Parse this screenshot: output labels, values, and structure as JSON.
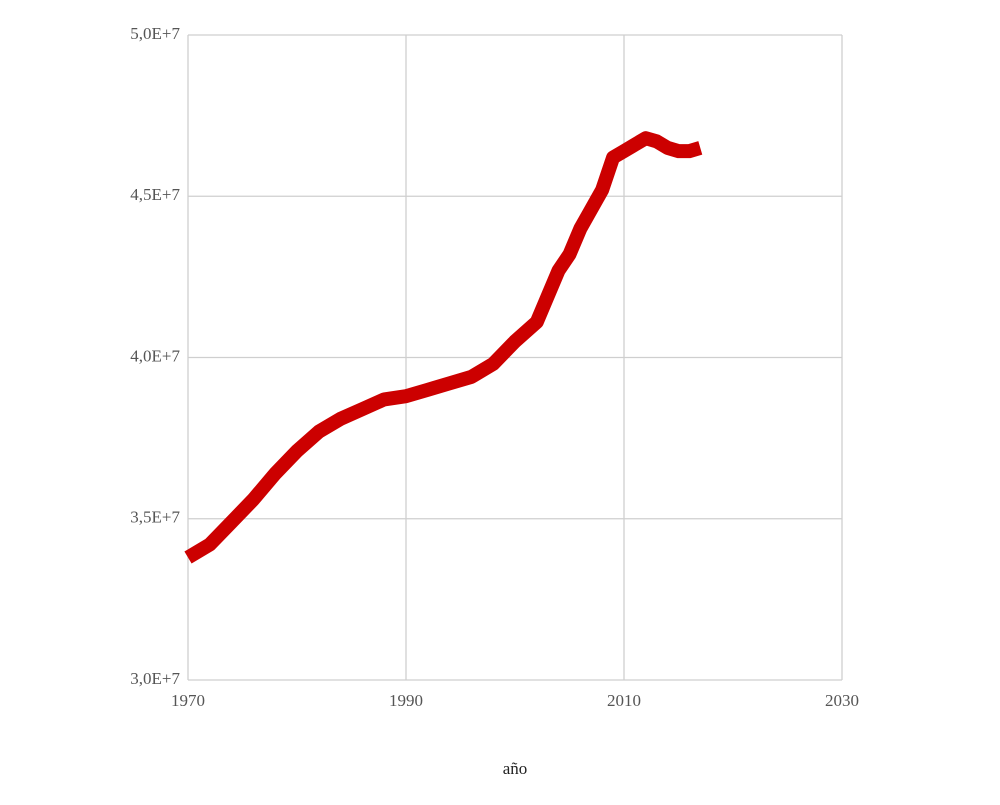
{
  "chart_data": {
    "type": "line",
    "x_label": "año",
    "x": [
      1970,
      1972,
      1974,
      1976,
      1978,
      1980,
      1982,
      1984,
      1986,
      1988,
      1990,
      1992,
      1994,
      1996,
      1998,
      2000,
      2002,
      2004,
      2005,
      2006,
      2007,
      2008,
      2009,
      2010,
      2011,
      2012,
      2013,
      2014,
      2015,
      2016,
      2017
    ],
    "values": [
      33800000,
      34200000,
      34900000,
      35600000,
      36400000,
      37100000,
      37700000,
      38100000,
      38400000,
      38700000,
      38800000,
      39000000,
      39200000,
      39400000,
      39800000,
      40500000,
      41100000,
      42700000,
      43200000,
      44000000,
      44600000,
      45200000,
      46200000,
      46400000,
      46600000,
      46800000,
      46700000,
      46500000,
      46400000,
      46400000,
      46500000
    ],
    "color": "#cc0000",
    "xlim": [
      1970,
      2030
    ],
    "xticks": [
      1970,
      1990,
      2010,
      2030
    ],
    "ylim": [
      30000000,
      50000000
    ],
    "yticks": [
      {
        "value": 30000000,
        "label": "3,0E+7"
      },
      {
        "value": 35000000,
        "label": "3,5E+7"
      },
      {
        "value": 40000000,
        "label": "4,0E+7"
      },
      {
        "value": 45000000,
        "label": "4,5E+7"
      },
      {
        "value": 50000000,
        "label": "5,0E+7"
      }
    ],
    "grid": true
  }
}
